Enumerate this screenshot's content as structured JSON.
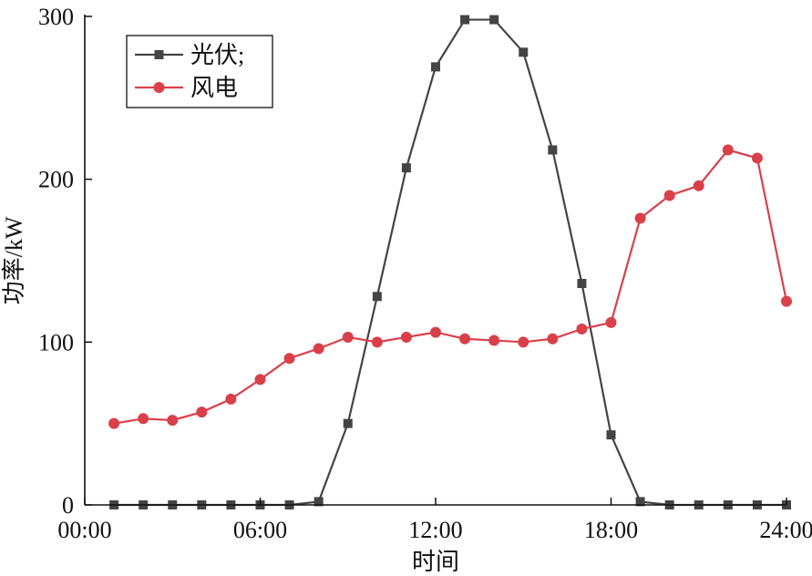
{
  "chart_data": {
    "type": "line",
    "title": "",
    "xlabel": "时间",
    "ylabel": "功率/kW",
    "x_ticks": [
      "00:00",
      "06:00",
      "12:00",
      "18:00",
      "24:00"
    ],
    "y_ticks": [
      "0",
      "100",
      "200",
      "300"
    ],
    "xlim": [
      0,
      24
    ],
    "ylim": [
      0,
      300
    ],
    "grid": false,
    "legend_position": "top-left",
    "x": [
      1,
      2,
      3,
      4,
      5,
      6,
      7,
      8,
      9,
      10,
      11,
      12,
      13,
      14,
      15,
      16,
      17,
      18,
      19,
      20,
      21,
      22,
      23,
      24
    ],
    "series": [
      {
        "name": "光伏;",
        "color": "#444444",
        "marker": "square",
        "values": [
          0,
          0,
          0,
          0,
          0,
          0,
          0,
          2,
          50,
          128,
          207,
          269,
          298,
          298,
          278,
          218,
          136,
          43,
          2,
          0,
          0,
          0,
          0,
          0
        ]
      },
      {
        "name": "风电",
        "color": "#d9404a",
        "marker": "circle",
        "values": [
          50,
          53,
          52,
          57,
          65,
          77,
          90,
          96,
          103,
          100,
          103,
          106,
          102,
          101,
          100,
          102,
          108,
          112,
          176,
          190,
          196,
          218,
          213,
          125
        ]
      }
    ]
  }
}
